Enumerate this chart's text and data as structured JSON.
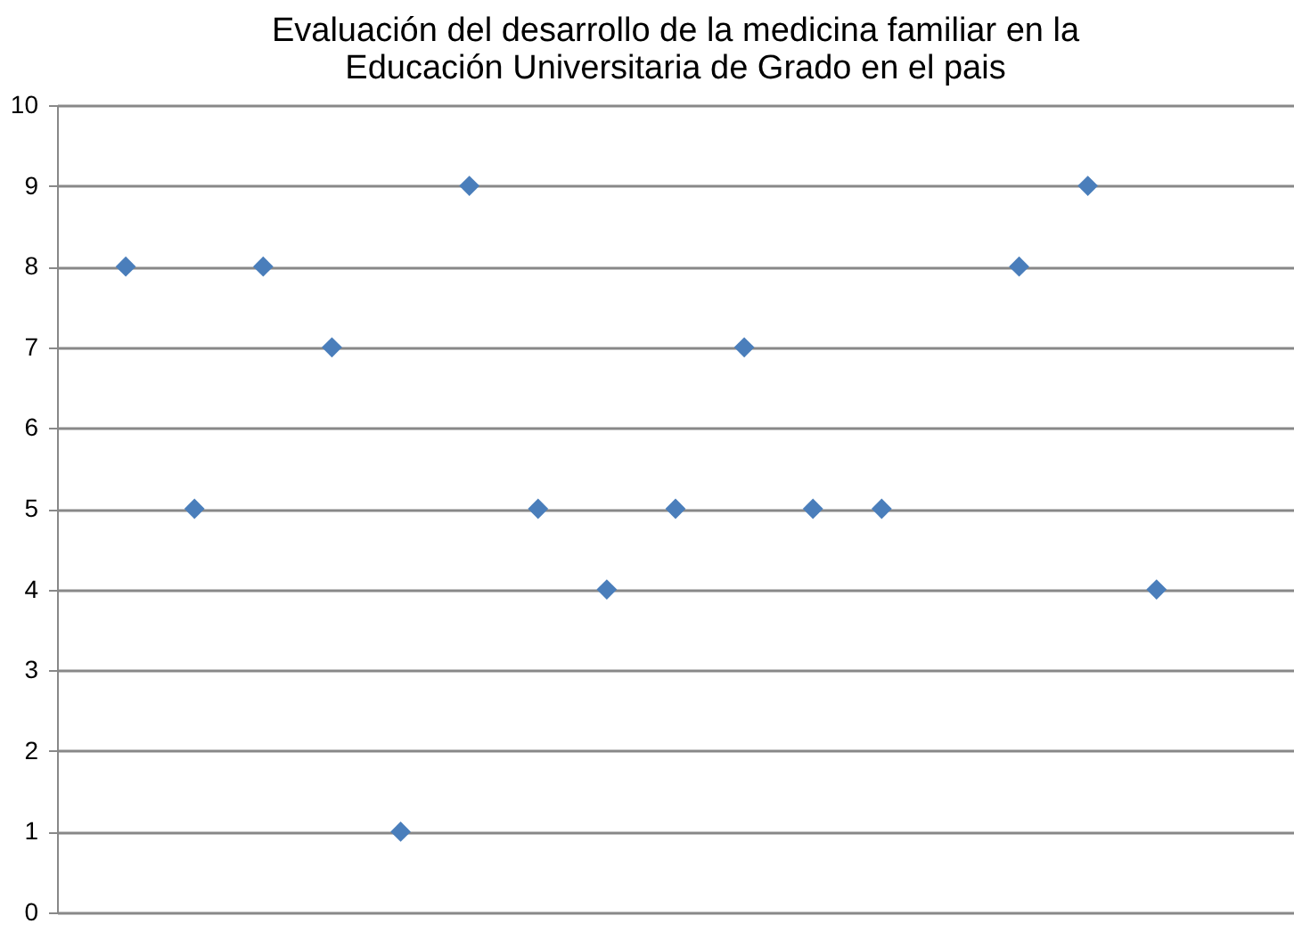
{
  "chart_data": {
    "type": "scatter",
    "title": "Evaluación del desarrollo de la medicina familiar en la Educación Universitaria de Grado en el pais",
    "categories": [
      null,
      null,
      null,
      null,
      null,
      null,
      null,
      null,
      null,
      null,
      null,
      null,
      null,
      null,
      null,
      null,
      null
    ],
    "series": [
      {
        "color": "#4a7ebb",
        "values": [
          8,
          5,
          8,
          7,
          1,
          9,
          5,
          4,
          5,
          7,
          5,
          5,
          null,
          8,
          9,
          4,
          null
        ]
      }
    ],
    "ylim": [
      0,
      10
    ],
    "yticks": [
      0,
      1,
      2,
      3,
      4,
      5,
      6,
      7,
      8,
      9,
      10
    ],
    "grid": "y",
    "marker": "diamond",
    "tick_labels": "y"
  }
}
